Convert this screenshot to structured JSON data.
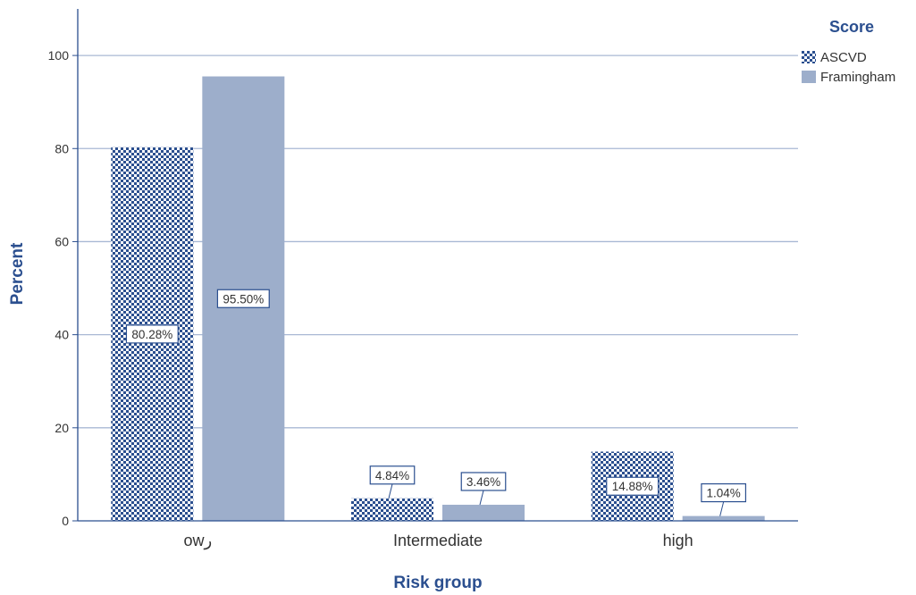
{
  "chart_data": {
    "type": "bar",
    "xlabel": "Risk group",
    "ylabel": "Percent",
    "ylim": [
      0,
      110
    ],
    "yticks": [
      0,
      20,
      40,
      60,
      80,
      100
    ],
    "grid": true,
    "categories": [
      "owر",
      "Intermediate",
      "high"
    ],
    "series": [
      {
        "name": "ASCVD",
        "values": [
          80.28,
          4.84,
          14.88
        ],
        "labels": [
          "80.28%",
          "4.84%",
          "14.88%"
        ],
        "color": "#2b4f8f",
        "pattern": "checker"
      },
      {
        "name": "Framingham",
        "values": [
          95.5,
          3.46,
          1.04
        ],
        "labels": [
          "95.50%",
          "3.46%",
          "1.04%"
        ],
        "color": "#9daecb",
        "pattern": "solid"
      }
    ],
    "legend": {
      "title": "Score",
      "position": "top-right"
    },
    "colors": {
      "axis": "#2b4f8f",
      "grid": "#a9b8d4",
      "text": "#2b4f8f",
      "label_border": "#2b4f8f"
    }
  }
}
